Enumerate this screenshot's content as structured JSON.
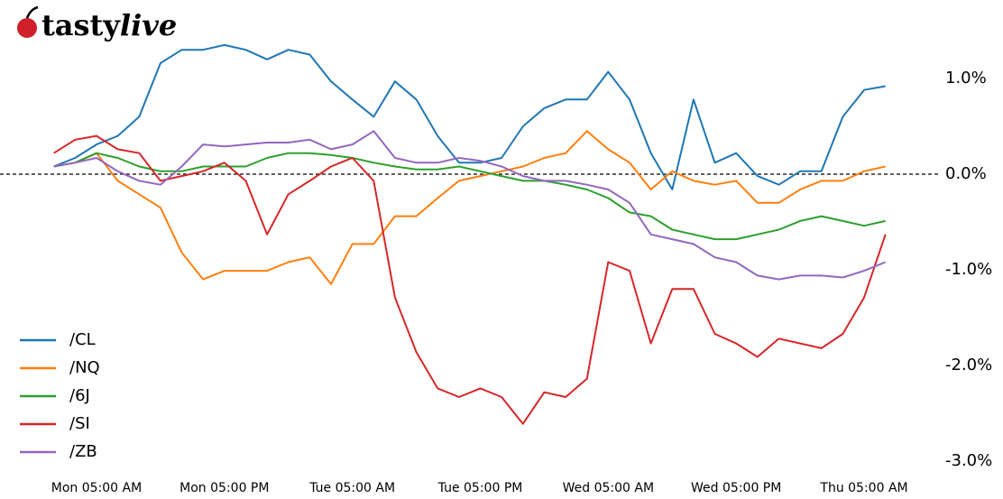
{
  "logo": {
    "text": "tasty",
    "text_italic": "live"
  },
  "chart_data": {
    "type": "line",
    "categories": [
      null,
      null,
      "Mon 05:00 AM",
      null,
      null,
      null,
      null,
      null,
      "Mon 05:00 PM",
      null,
      null,
      null,
      null,
      null,
      "Tue 05:00 AM",
      null,
      null,
      null,
      null,
      null,
      "Tue 05:00 PM",
      null,
      null,
      null,
      null,
      null,
      "Wed 05:00 AM",
      null,
      null,
      null,
      null,
      null,
      "Wed 05:00 PM",
      null,
      null,
      null,
      null,
      null,
      "Thu 05:00 AM",
      null
    ],
    "series": [
      {
        "name": "/CL",
        "color": "#1f77b4",
        "values": [
          0.08,
          0.17,
          0.31,
          0.4,
          0.6,
          1.16,
          1.3,
          1.3,
          1.35,
          1.3,
          1.2,
          1.3,
          1.25,
          0.97,
          0.78,
          0.6,
          0.97,
          0.78,
          0.4,
          0.12,
          0.12,
          0.17,
          0.5,
          0.69,
          0.78,
          0.78,
          1.07,
          0.78,
          0.22,
          -0.16,
          0.78,
          0.12,
          0.22,
          -0.02,
          -0.11,
          0.03,
          0.03,
          0.6,
          0.88,
          0.92
        ]
      },
      {
        "name": "/NQ",
        "color": "#ff7f0e",
        "values": [
          0.08,
          0.12,
          0.22,
          -0.07,
          -0.21,
          -0.35,
          -0.82,
          -1.1,
          -1.01,
          -1.01,
          -1.01,
          -0.92,
          -0.87,
          -1.15,
          -0.73,
          -0.73,
          -0.44,
          -0.44,
          -0.25,
          -0.07,
          -0.02,
          0.03,
          0.08,
          0.17,
          0.22,
          0.45,
          0.26,
          0.12,
          -0.16,
          0.03,
          -0.07,
          -0.11,
          -0.07,
          -0.3,
          -0.3,
          -0.16,
          -0.07,
          -0.07,
          0.03,
          0.08
        ]
      },
      {
        "name": "/6J",
        "color": "#2ca02c",
        "values": [
          0.08,
          0.12,
          0.22,
          0.17,
          0.08,
          0.03,
          0.03,
          0.08,
          0.08,
          0.08,
          0.17,
          0.22,
          0.22,
          0.2,
          0.17,
          0.12,
          0.08,
          0.05,
          0.05,
          0.08,
          0.03,
          -0.02,
          -0.07,
          -0.07,
          -0.11,
          -0.16,
          -0.25,
          -0.4,
          -0.44,
          -0.58,
          -0.63,
          -0.68,
          -0.68,
          -0.63,
          -0.58,
          -0.49,
          -0.44,
          -0.49,
          -0.54,
          -0.49
        ]
      },
      {
        "name": "/SI",
        "color": "#d62728",
        "values": [
          0.22,
          0.36,
          0.4,
          0.26,
          0.22,
          -0.07,
          -0.02,
          0.03,
          0.12,
          -0.07,
          -0.63,
          -0.21,
          -0.07,
          0.08,
          0.17,
          -0.07,
          -1.29,
          -1.86,
          -2.24,
          -2.33,
          -2.24,
          -2.33,
          -2.61,
          -2.28,
          -2.33,
          -2.14,
          -0.92,
          -1.01,
          -1.77,
          -1.2,
          -1.2,
          -1.67,
          -1.77,
          -1.91,
          -1.72,
          -1.77,
          -1.82,
          -1.67,
          -1.29,
          -0.63
        ]
      },
      {
        "name": "/ZB",
        "color": "#9467bd",
        "values": [
          0.08,
          0.12,
          0.17,
          0.03,
          -0.07,
          -0.11,
          0.08,
          0.31,
          0.29,
          0.31,
          0.33,
          0.33,
          0.36,
          0.26,
          0.31,
          0.45,
          0.17,
          0.12,
          0.12,
          0.17,
          0.14,
          0.08,
          -0.02,
          -0.07,
          -0.07,
          -0.11,
          -0.16,
          -0.3,
          -0.63,
          -0.68,
          -0.73,
          -0.87,
          -0.92,
          -1.06,
          -1.1,
          -1.06,
          -1.06,
          -1.08,
          -1.01,
          -0.92
        ]
      }
    ],
    "ylim": [
      -3.15,
      1.55
    ],
    "yticks": [
      {
        "value": 1.0,
        "label": "1.0%"
      },
      {
        "value": 0.0,
        "label": "0.0%"
      },
      {
        "value": -1.0,
        "label": "-1.0%"
      },
      {
        "value": -2.0,
        "label": "-2.0%"
      },
      {
        "value": -3.0,
        "label": "-3.0%"
      }
    ],
    "zero_line": true,
    "legend": "lower-left"
  }
}
